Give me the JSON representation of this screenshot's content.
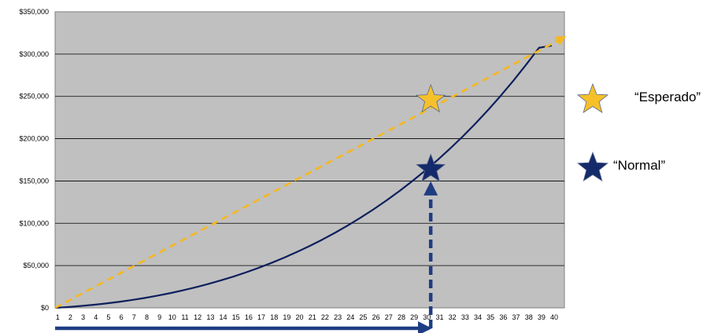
{
  "chart_data": {
    "type": "line",
    "x": [
      1,
      2,
      3,
      4,
      5,
      6,
      7,
      8,
      9,
      10,
      11,
      12,
      13,
      14,
      15,
      16,
      17,
      18,
      19,
      20,
      21,
      22,
      23,
      24,
      25,
      26,
      27,
      28,
      29,
      30,
      31,
      32,
      33,
      34,
      35,
      36,
      37,
      38,
      39,
      40
    ],
    "x_tick_labels": [
      "1",
      "2",
      "3",
      "4",
      "5",
      "6",
      "7",
      "8",
      "9",
      "10",
      "11",
      "12",
      "13",
      "14",
      "15",
      "16",
      "17",
      "18",
      "19",
      "20",
      "21",
      "22",
      "23",
      "24",
      "25",
      "26",
      "27",
      "28",
      "29",
      "30",
      "31",
      "32",
      "33",
      "34",
      "35",
      "36",
      "37",
      "38",
      "39",
      "40"
    ],
    "y_tick_labels": [
      "$0",
      "$50,000",
      "$100,000",
      "$150,000",
      "$200,000",
      "$250,000",
      "$300,000",
      "$350,000"
    ],
    "y_ticks": [
      0,
      50000,
      100000,
      150000,
      200000,
      250000,
      300000,
      350000
    ],
    "ylim": [
      0,
      350000
    ],
    "xlim": [
      1,
      41
    ],
    "grid": "horizontal",
    "plot_background": "#c0c0c0",
    "series": [
      {
        "name": "Normal",
        "color": "#0d1f5c",
        "style": "solid",
        "values": [
          0,
          1000,
          2200,
          3600,
          5200,
          7100,
          9200,
          11600,
          14300,
          17300,
          20600,
          24200,
          28100,
          32400,
          37000,
          42000,
          47400,
          53200,
          59400,
          66100,
          73200,
          80800,
          88900,
          97500,
          106700,
          116400,
          126700,
          137600,
          149200,
          161400,
          174300,
          188000,
          202400,
          217700,
          233800,
          250800,
          268700,
          287600,
          307400,
          310000
        ]
      },
      {
        "name": "Esperado",
        "color": "#f5b820",
        "style": "dashed",
        "points": [
          [
            1,
            0
          ],
          [
            41,
            320000
          ]
        ]
      }
    ],
    "markers": [
      {
        "series": "Esperado",
        "x": 30.5,
        "y": 246000,
        "shape": "star",
        "color": "#f5c02a"
      },
      {
        "series": "Normal",
        "x": 30.5,
        "y": 164000,
        "shape": "star",
        "color": "#142a6b"
      }
    ],
    "annotations": [
      {
        "type": "arrow",
        "direction": "right",
        "from_x": 1,
        "to_x": 30.5,
        "color": "#1f3d82",
        "style": "solid"
      },
      {
        "type": "arrow",
        "direction": "up",
        "at_x": 30.5,
        "to_y": 150000,
        "color": "#1f3d82",
        "style": "dashed"
      }
    ],
    "legend": {
      "placement": "right",
      "entries": [
        {
          "label": "“Esperado”",
          "color": "#f5c02a",
          "icon": "star-icon"
        },
        {
          "label": "“Normal”",
          "color": "#142a6b",
          "icon": "star-icon"
        }
      ]
    }
  }
}
